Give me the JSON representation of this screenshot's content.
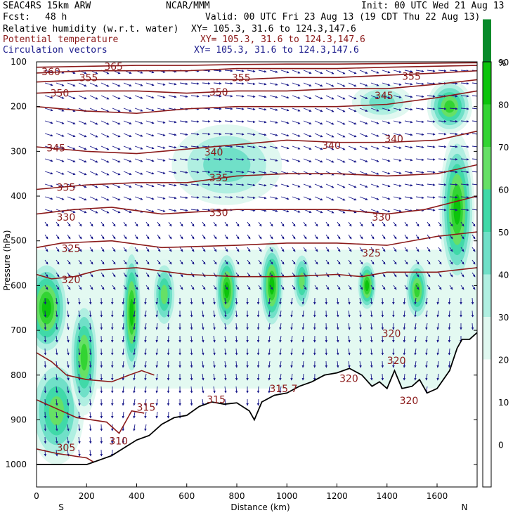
{
  "header": {
    "model": "SEAC4RS 15km ARW",
    "org": "NCAR/MMM",
    "init": "Init: 00 UTC Wed 21 Aug 13",
    "fcst_label": "Fcst:",
    "fcst_value": "48 h",
    "valid": "Valid: 00 UTC Fri 23 Aug 13 (19 CDT Thu 22 Aug 13)",
    "fields": [
      {
        "name": "Relative humidity (w.r.t. water)",
        "xy": "XY= 105.3, 31.6 to 124.3,147.6",
        "color": "#000000"
      },
      {
        "name": "Potential temperature",
        "xy": "XY= 105.3, 31.6 to 124.3,147.6",
        "color": "#8b1a1a"
      },
      {
        "name": "Circulation vectors",
        "xy": "XY= 105.3, 31.6 to 124.3,147.6",
        "color": "#1a1a8b"
      }
    ]
  },
  "chart_data": {
    "type": "heatmap",
    "xlabel": "Distance (km)",
    "ylabel": "Pressure (hPa)",
    "xlim": [
      0,
      1760
    ],
    "ylim": [
      1050,
      100
    ],
    "x_ticks": [
      0,
      200,
      400,
      600,
      800,
      1000,
      1200,
      1400,
      1600
    ],
    "y_ticks": [
      100,
      200,
      300,
      400,
      500,
      600,
      700,
      800,
      900,
      1000
    ],
    "x_end_labels": {
      "left": "S",
      "right": "N"
    },
    "colorbar": {
      "unit": "%",
      "ticks": [
        0,
        10,
        20,
        30,
        40,
        50,
        60,
        70,
        80,
        90
      ],
      "bins": [
        {
          "from": 20,
          "to": 30,
          "color": "#e0f8f0"
        },
        {
          "from": 30,
          "to": 40,
          "color": "#b0efe1"
        },
        {
          "from": 40,
          "to": 50,
          "color": "#70e0c8"
        },
        {
          "from": 50,
          "to": 60,
          "color": "#40d9a8"
        },
        {
          "from": 60,
          "to": 70,
          "color": "#66e066"
        },
        {
          "from": 70,
          "to": 80,
          "color": "#33d433"
        },
        {
          "from": 80,
          "to": 90,
          "color": "#0cc40c"
        },
        {
          "from": 90,
          "to": 100,
          "color": "#078a2a"
        }
      ]
    },
    "theta_contours": [
      {
        "label": "305",
        "pts": [
          [
            0,
            965
          ],
          [
            80,
            975
          ],
          [
            200,
            985
          ],
          [
            230,
            995
          ]
        ]
      },
      {
        "label": "310",
        "pts": [
          [
            0,
            855
          ],
          [
            80,
            875
          ],
          [
            160,
            895
          ],
          [
            280,
            905
          ],
          [
            330,
            930
          ],
          [
            380,
            880
          ],
          [
            430,
            885
          ]
        ]
      },
      {
        "label": "315",
        "pts": [
          [
            0,
            750
          ],
          [
            60,
            770
          ],
          [
            120,
            800
          ],
          [
            200,
            810
          ],
          [
            300,
            815
          ],
          [
            370,
            800
          ],
          [
            420,
            790
          ],
          [
            470,
            800
          ]
        ]
      },
      {
        "label": "320",
        "pts": [
          [
            0,
            575
          ],
          [
            60,
            585
          ],
          [
            150,
            580
          ],
          [
            250,
            565
          ],
          [
            400,
            560
          ],
          [
            600,
            575
          ],
          [
            800,
            580
          ],
          [
            1000,
            580
          ],
          [
            1200,
            575
          ],
          [
            1300,
            580
          ],
          [
            1400,
            570
          ],
          [
            1600,
            570
          ],
          [
            1760,
            560
          ]
        ]
      },
      {
        "label": "325",
        "pts": [
          [
            0,
            515
          ],
          [
            100,
            505
          ],
          [
            300,
            500
          ],
          [
            500,
            515
          ],
          [
            800,
            510
          ],
          [
            1000,
            505
          ],
          [
            1200,
            505
          ],
          [
            1400,
            510
          ],
          [
            1600,
            490
          ],
          [
            1760,
            480
          ]
        ]
      },
      {
        "label": "330",
        "pts": [
          [
            0,
            440
          ],
          [
            150,
            430
          ],
          [
            300,
            425
          ],
          [
            500,
            440
          ],
          [
            800,
            430
          ],
          [
            1000,
            430
          ],
          [
            1200,
            430
          ],
          [
            1400,
            440
          ],
          [
            1550,
            430
          ],
          [
            1760,
            400
          ]
        ]
      },
      {
        "label": "335",
        "pts": [
          [
            0,
            385
          ],
          [
            200,
            375
          ],
          [
            400,
            370
          ],
          [
            600,
            370
          ],
          [
            800,
            355
          ],
          [
            1000,
            350
          ],
          [
            1200,
            350
          ],
          [
            1400,
            355
          ],
          [
            1600,
            350
          ],
          [
            1760,
            330
          ]
        ]
      },
      {
        "label": "340",
        "pts": [
          [
            0,
            290
          ],
          [
            200,
            300
          ],
          [
            400,
            305
          ],
          [
            600,
            295
          ],
          [
            800,
            285
          ],
          [
            1000,
            275
          ],
          [
            1200,
            280
          ],
          [
            1400,
            280
          ],
          [
            1600,
            275
          ],
          [
            1760,
            255
          ]
        ]
      },
      {
        "label": "345",
        "pts": [
          [
            0,
            200
          ],
          [
            200,
            210
          ],
          [
            400,
            215
          ],
          [
            600,
            205
          ],
          [
            800,
            200
          ],
          [
            1000,
            200
          ],
          [
            1200,
            200
          ],
          [
            1400,
            195
          ],
          [
            1600,
            180
          ],
          [
            1760,
            165
          ]
        ]
      },
      {
        "label": "350",
        "pts": [
          [
            0,
            170
          ],
          [
            200,
            165
          ],
          [
            400,
            165
          ],
          [
            600,
            170
          ],
          [
            800,
            165
          ],
          [
            1000,
            165
          ],
          [
            1200,
            160
          ],
          [
            1400,
            160
          ],
          [
            1600,
            150
          ],
          [
            1760,
            140
          ]
        ]
      },
      {
        "label": "355",
        "pts": [
          [
            0,
            145
          ],
          [
            200,
            140
          ],
          [
            400,
            140
          ],
          [
            600,
            140
          ],
          [
            800,
            140
          ],
          [
            1000,
            135
          ],
          [
            1200,
            135
          ],
          [
            1400,
            130
          ],
          [
            1600,
            125
          ],
          [
            1760,
            120
          ]
        ]
      },
      {
        "label": "360",
        "pts": [
          [
            0,
            125
          ],
          [
            200,
            120
          ],
          [
            400,
            120
          ],
          [
            600,
            120
          ],
          [
            800,
            115
          ],
          [
            1000,
            115
          ],
          [
            1200,
            115
          ],
          [
            1400,
            112
          ],
          [
            1760,
            108
          ]
        ]
      },
      {
        "label": "365",
        "pts": [
          [
            0,
            112
          ],
          [
            200,
            110
          ],
          [
            400,
            108
          ],
          [
            600,
            108
          ],
          [
            800,
            106
          ],
          [
            1000,
            105
          ],
          [
            1200,
            105
          ],
          [
            1400,
            104
          ],
          [
            1760,
            102
          ]
        ]
      }
    ],
    "annotations": [
      {
        "text": "360",
        "x": 20,
        "p": 130
      },
      {
        "text": "365",
        "x": 270,
        "p": 118
      },
      {
        "text": "355",
        "x": 170,
        "p": 143
      },
      {
        "text": "355",
        "x": 780,
        "p": 143
      },
      {
        "text": "355",
        "x": 1460,
        "p": 140
      },
      {
        "text": "350",
        "x": 55,
        "p": 178
      },
      {
        "text": "350",
        "x": 690,
        "p": 175
      },
      {
        "text": "345",
        "x": 1350,
        "p": 183
      },
      {
        "text": "345",
        "x": 40,
        "p": 300
      },
      {
        "text": "340",
        "x": 670,
        "p": 310
      },
      {
        "text": "340",
        "x": 1140,
        "p": 295
      },
      {
        "text": "340",
        "x": 1390,
        "p": 280
      },
      {
        "text": "335",
        "x": 690,
        "p": 367
      },
      {
        "text": "335",
        "x": 80,
        "p": 388
      },
      {
        "text": "330",
        "x": 80,
        "p": 455
      },
      {
        "text": "330",
        "x": 690,
        "p": 445
      },
      {
        "text": "330",
        "x": 1340,
        "p": 455
      },
      {
        "text": "325",
        "x": 100,
        "p": 525
      },
      {
        "text": "325",
        "x": 1300,
        "p": 535
      },
      {
        "text": "320",
        "x": 100,
        "p": 595
      },
      {
        "text": "320",
        "x": 1380,
        "p": 715
      },
      {
        "text": "320",
        "x": 1400,
        "p": 775
      },
      {
        "text": "320",
        "x": 1210,
        "p": 815
      },
      {
        "text": "320",
        "x": 1450,
        "p": 865
      },
      {
        "text": "315.7",
        "x": 930,
        "p": 838
      },
      {
        "text": "315",
        "x": 680,
        "p": 862
      },
      {
        "text": "315",
        "x": 400,
        "p": 880
      },
      {
        "text": "310",
        "x": 290,
        "p": 955
      },
      {
        "text": "305",
        "x": 80,
        "p": 970
      }
    ],
    "terrain": [
      [
        0,
        1000
      ],
      [
        200,
        1000
      ],
      [
        300,
        980
      ],
      [
        400,
        945
      ],
      [
        450,
        935
      ],
      [
        500,
        910
      ],
      [
        550,
        895
      ],
      [
        600,
        890
      ],
      [
        650,
        870
      ],
      [
        700,
        860
      ],
      [
        750,
        865
      ],
      [
        800,
        862
      ],
      [
        850,
        880
      ],
      [
        870,
        900
      ],
      [
        900,
        860
      ],
      [
        950,
        845
      ],
      [
        1000,
        840
      ],
      [
        1050,
        825
      ],
      [
        1100,
        815
      ],
      [
        1150,
        800
      ],
      [
        1200,
        795
      ],
      [
        1250,
        785
      ],
      [
        1300,
        800
      ],
      [
        1340,
        825
      ],
      [
        1370,
        815
      ],
      [
        1400,
        830
      ],
      [
        1430,
        790
      ],
      [
        1460,
        830
      ],
      [
        1500,
        825
      ],
      [
        1530,
        810
      ],
      [
        1560,
        840
      ],
      [
        1600,
        830
      ],
      [
        1650,
        790
      ],
      [
        1680,
        740
      ],
      [
        1700,
        720
      ],
      [
        1730,
        720
      ],
      [
        1760,
        705
      ]
    ],
    "rh_blobs": [
      {
        "x": 40,
        "p": 650,
        "rx": 90,
        "ry": 110,
        "rh": 85
      },
      {
        "x": 80,
        "p": 880,
        "rx": 110,
        "ry": 120,
        "rh": 65
      },
      {
        "x": 190,
        "p": 760,
        "rx": 60,
        "ry": 130,
        "rh": 70
      },
      {
        "x": 380,
        "p": 660,
        "rx": 40,
        "ry": 150,
        "rh": 85
      },
      {
        "x": 510,
        "p": 620,
        "rx": 50,
        "ry": 80,
        "rh": 60
      },
      {
        "x": 760,
        "p": 610,
        "rx": 50,
        "ry": 90,
        "rh": 85
      },
      {
        "x": 940,
        "p": 600,
        "rx": 50,
        "ry": 100,
        "rh": 88
      },
      {
        "x": 1060,
        "p": 590,
        "rx": 40,
        "ry": 70,
        "rh": 65
      },
      {
        "x": 1320,
        "p": 600,
        "rx": 40,
        "ry": 60,
        "rh": 80
      },
      {
        "x": 1520,
        "p": 610,
        "rx": 50,
        "ry": 70,
        "rh": 75
      },
      {
        "x": 1680,
        "p": 430,
        "rx": 70,
        "ry": 170,
        "rh": 85
      },
      {
        "x": 1650,
        "p": 200,
        "rx": 90,
        "ry": 60,
        "rh": 75
      },
      {
        "x": 1380,
        "p": 190,
        "rx": 120,
        "ry": 40,
        "rh": 45
      },
      {
        "x": 760,
        "p": 330,
        "rx": 220,
        "ry": 90,
        "rh": 45
      }
    ],
    "rh_band": {
      "p_top": 520,
      "p_bottom": 830,
      "rh": 40
    }
  }
}
